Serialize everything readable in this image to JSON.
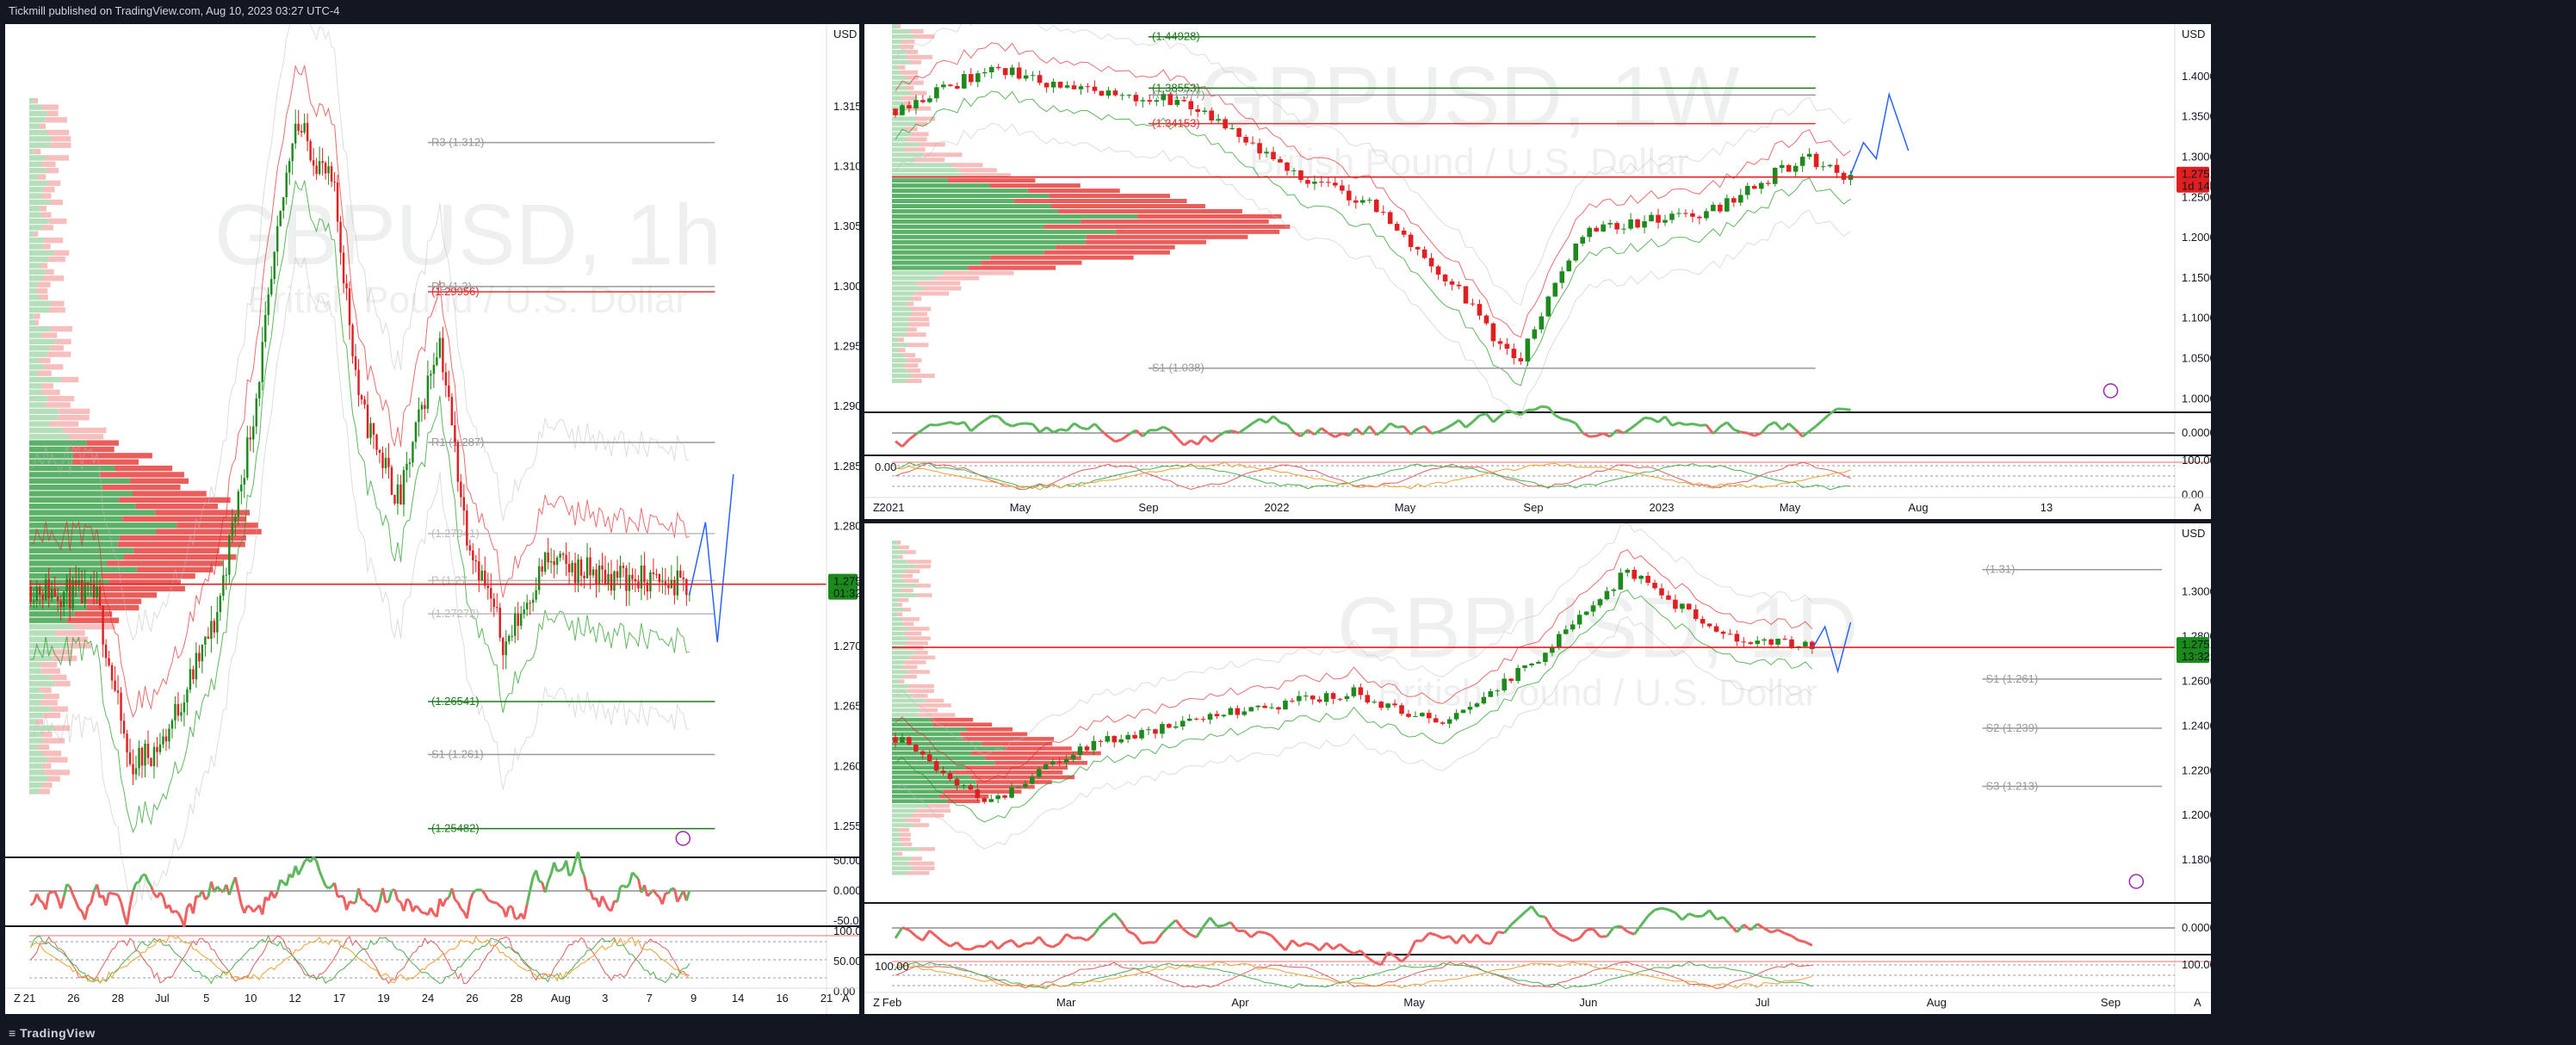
{
  "header": {
    "publish_line": "Tickmill published on TradingView.com, Aug 10, 2023 03:27 UTC-4"
  },
  "footer": {
    "brand": "TradingView"
  },
  "colors": {
    "up": "#1e8a1e",
    "down": "#e02020",
    "ema": "#e03030",
    "level_green": "#1b7a1b",
    "level_red": "#e03333",
    "bg": "#ffffff"
  },
  "chart_data": [
    {
      "id": "main",
      "type": "candlestick",
      "symbol": "GBPUSD, 1h",
      "description": "British Pound / U.S. Dollar",
      "currency": "USD",
      "ylim": [
        1.253,
        1.319
      ],
      "y_ticks": [
        "1.31500",
        "1.31000",
        "1.30500",
        "1.30000",
        "1.29500",
        "1.29000",
        "1.28500",
        "1.28000",
        "1.27500",
        "1.27000",
        "1.26500",
        "1.26000",
        "1.25500"
      ],
      "x_ticks": [
        "21",
        "26",
        "28",
        "Jul",
        "5",
        "10",
        "12",
        "17",
        "19",
        "24",
        "26",
        "28",
        "Aug",
        "3",
        "7",
        "9",
        "14",
        "16",
        "21"
      ],
      "last_price": "1.27519",
      "countdown": "01:32:11",
      "levels": [
        {
          "label": "R3 (1.312)",
          "value": 1.312,
          "color": "#999999"
        },
        {
          "label": "R2 (1.3)",
          "value": 1.3,
          "color": "#999999"
        },
        {
          "label": "(1.29956)",
          "value": 1.29956,
          "color": "#e03333"
        },
        {
          "label": "R1 (1.287)",
          "value": 1.287,
          "color": "#999999"
        },
        {
          "label": "(1.27941)",
          "value": 1.27941,
          "color": "#bbbbbb"
        },
        {
          "label": "P (1.27...",
          "value": 1.2755,
          "color": "#bbbbbb"
        },
        {
          "label": "(1.27272)",
          "value": 1.27272,
          "color": "#bbbbbb"
        },
        {
          "label": "(1.26541)",
          "value": 1.26541,
          "color": "#1b7a1b"
        },
        {
          "label": "S1 (1.261)",
          "value": 1.261,
          "color": "#999999"
        },
        {
          "label": "(1.25482)",
          "value": 1.25482,
          "color": "#1b7a1b"
        }
      ],
      "osc1_ticks": [
        "50.00000",
        "0.00000",
        "-50.00000"
      ],
      "osc2_ticks": [
        "100.00",
        "50.00",
        "0.00"
      ]
    },
    {
      "id": "weekly",
      "type": "candlestick",
      "symbol": "GBPUSD, 1W",
      "description": "British Pound / U.S. Dollar",
      "currency": "USD",
      "ylim": [
        0.995,
        1.465
      ],
      "y_ticks": [
        "1.40000",
        "1.35000",
        "1.30000",
        "1.25000",
        "1.20000",
        "1.15000",
        "1.10000",
        "1.05000",
        "1.00000"
      ],
      "x_ticks": [
        "2021",
        "May",
        "Sep",
        "2022",
        "May",
        "Sep",
        "2023",
        "May",
        "Aug",
        "13"
      ],
      "last_price": "1.27519",
      "countdown": "1d 14h",
      "levels": [
        {
          "label": "(1.44928)",
          "value": 1.44928,
          "color": "#1b7a1b"
        },
        {
          "label": "(1.38553)",
          "value": 1.38553,
          "color": "#1b7a1b"
        },
        {
          "label": "R1 (1.377)",
          "value": 1.377,
          "color": "#999999"
        },
        {
          "label": "(1.34153)",
          "value": 1.34153,
          "color": "#e03333"
        },
        {
          "label": "S1 (1.038)",
          "value": 1.038,
          "color": "#999999"
        }
      ],
      "osc1_ticks": [
        "0.00000"
      ],
      "osc2_ticks": [
        "100.00",
        "0.00"
      ],
      "osc2_left_label": "0.00"
    },
    {
      "id": "daily",
      "type": "candlestick",
      "symbol": "GBPUSD, 1D",
      "description": "British Pound / U.S. Dollar",
      "currency": "USD",
      "ylim": [
        1.165,
        1.323
      ],
      "y_ticks": [
        "1.30000",
        "1.28000",
        "1.26000",
        "1.24000",
        "1.22000",
        "1.20000",
        "1.18000"
      ],
      "x_ticks": [
        "Feb",
        "Mar",
        "Apr",
        "May",
        "Jun",
        "Jul",
        "Aug",
        "Sep"
      ],
      "last_price": "1.27519",
      "countdown": "13:32:11",
      "levels": [
        {
          "label": "(1.31)",
          "value": 1.31,
          "color": "#999999"
        },
        {
          "label": "S1 (1.261)",
          "value": 1.261,
          "color": "#999999"
        },
        {
          "label": "S2 (1.239)",
          "value": 1.239,
          "color": "#999999"
        },
        {
          "label": "S3 (1.213)",
          "value": 1.213,
          "color": "#999999"
        }
      ],
      "osc1_ticks": [
        "0.00000"
      ],
      "osc2_ticks": [
        "100.00"
      ],
      "osc2_left_label": "100.00"
    }
  ]
}
